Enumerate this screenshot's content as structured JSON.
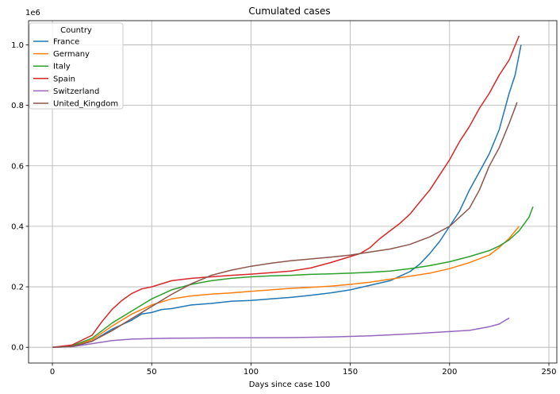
{
  "chart_data": {
    "type": "line",
    "title": "Cumulated cases",
    "xlabel": "Days since case 100",
    "ylabel": "",
    "y_multiplier_label": "1e6",
    "xlim": [
      -12,
      254
    ],
    "ylim": [
      -52000,
      1080000
    ],
    "xticks": [
      0,
      50,
      100,
      150,
      200,
      250
    ],
    "xtick_labels": [
      "0",
      "50",
      "100",
      "150",
      "200",
      "250"
    ],
    "yticks": [
      0,
      200000,
      400000,
      600000,
      800000,
      1000000
    ],
    "ytick_labels": [
      "0.0",
      "0.2",
      "0.4",
      "0.6",
      "0.8",
      "1.0"
    ],
    "grid": true,
    "legend": {
      "title": "Country",
      "placement": "top-left"
    },
    "series": [
      {
        "name": "France",
        "color": "#1f77b4",
        "x": [
          0,
          10,
          20,
          30,
          40,
          45,
          50,
          55,
          60,
          70,
          80,
          90,
          100,
          110,
          120,
          130,
          140,
          150,
          160,
          170,
          180,
          185,
          190,
          195,
          200,
          205,
          210,
          215,
          220,
          225,
          230,
          233,
          236
        ],
        "y": [
          0,
          2000,
          20000,
          60000,
          90000,
          110000,
          115000,
          125000,
          128000,
          140000,
          145000,
          152000,
          155000,
          160000,
          165000,
          172000,
          180000,
          190000,
          205000,
          220000,
          250000,
          275000,
          310000,
          350000,
          400000,
          450000,
          520000,
          580000,
          640000,
          720000,
          840000,
          900000,
          1000000
        ]
      },
      {
        "name": "Germany",
        "color": "#ff7f0e",
        "x": [
          0,
          10,
          20,
          30,
          40,
          50,
          60,
          70,
          80,
          90,
          100,
          110,
          120,
          130,
          140,
          150,
          160,
          170,
          180,
          190,
          200,
          210,
          220,
          225,
          230,
          235
        ],
        "y": [
          0,
          3000,
          25000,
          70000,
          110000,
          140000,
          160000,
          170000,
          176000,
          180000,
          185000,
          190000,
          195000,
          198000,
          202000,
          208000,
          215000,
          225000,
          235000,
          245000,
          260000,
          280000,
          305000,
          330000,
          360000,
          400000
        ]
      },
      {
        "name": "Italy",
        "color": "#2ca02c",
        "x": [
          0,
          10,
          20,
          30,
          40,
          50,
          60,
          70,
          80,
          90,
          100,
          110,
          120,
          130,
          140,
          150,
          160,
          170,
          180,
          190,
          200,
          210,
          220,
          225,
          230,
          235,
          240,
          242
        ],
        "y": [
          0,
          5000,
          30000,
          80000,
          120000,
          160000,
          190000,
          208000,
          220000,
          228000,
          233000,
          236000,
          238000,
          241000,
          243000,
          245000,
          248000,
          252000,
          260000,
          270000,
          283000,
          300000,
          320000,
          335000,
          355000,
          385000,
          430000,
          465000
        ]
      },
      {
        "name": "Spain",
        "color": "#d62728",
        "x": [
          0,
          10,
          20,
          25,
          30,
          35,
          40,
          45,
          50,
          60,
          70,
          80,
          90,
          100,
          110,
          120,
          130,
          140,
          150,
          155,
          160,
          165,
          170,
          175,
          180,
          185,
          190,
          195,
          200,
          205,
          210,
          215,
          220,
          225,
          230,
          235
        ],
        "y": [
          0,
          8000,
          40000,
          85000,
          125000,
          155000,
          178000,
          193000,
          200000,
          220000,
          228000,
          233000,
          238000,
          242000,
          247000,
          252000,
          262000,
          280000,
          300000,
          310000,
          330000,
          360000,
          385000,
          410000,
          440000,
          480000,
          520000,
          570000,
          620000,
          680000,
          730000,
          790000,
          840000,
          900000,
          950000,
          1030000
        ]
      },
      {
        "name": "Switzerland",
        "color": "#9467bd",
        "x": [
          0,
          10,
          20,
          30,
          40,
          50,
          60,
          70,
          80,
          100,
          120,
          140,
          160,
          180,
          200,
          210,
          215,
          220,
          225,
          230
        ],
        "y": [
          0,
          2000,
          12000,
          22000,
          27000,
          29000,
          30000,
          30500,
          31000,
          31500,
          32000,
          34000,
          38000,
          44000,
          52000,
          56000,
          62000,
          68000,
          77000,
          97000
        ]
      },
      {
        "name": "United_Kingdom",
        "color": "#8c564b",
        "x": [
          0,
          10,
          20,
          30,
          40,
          50,
          60,
          70,
          80,
          90,
          100,
          110,
          120,
          130,
          140,
          150,
          160,
          170,
          180,
          190,
          200,
          205,
          210,
          215,
          220,
          225,
          230,
          234
        ],
        "y": [
          0,
          3000,
          20000,
          55000,
          95000,
          135000,
          175000,
          210000,
          238000,
          255000,
          268000,
          278000,
          286000,
          292000,
          298000,
          305000,
          315000,
          325000,
          340000,
          365000,
          400000,
          430000,
          460000,
          520000,
          600000,
          660000,
          740000,
          810000
        ]
      }
    ]
  }
}
